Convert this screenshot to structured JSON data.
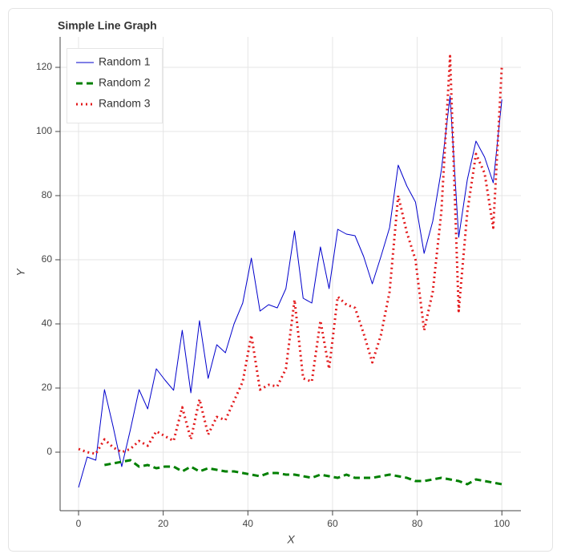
{
  "chart_data": {
    "type": "line",
    "title": "Simple Line Graph",
    "x_label": "X",
    "y_label": "Y",
    "x": [
      0,
      2.04,
      4.08,
      6.12,
      8.16,
      10.2,
      12.24,
      14.29,
      16.33,
      18.37,
      20.41,
      22.45,
      24.49,
      26.53,
      28.57,
      30.61,
      32.65,
      34.69,
      36.73,
      38.78,
      40.82,
      42.86,
      44.9,
      46.94,
      48.98,
      51.02,
      53.06,
      55.1,
      57.14,
      59.18,
      61.22,
      63.27,
      65.31,
      67.35,
      69.39,
      71.43,
      73.47,
      75.51,
      77.55,
      79.59,
      81.63,
      83.67,
      85.71,
      87.76,
      89.8,
      91.84,
      93.88,
      95.92,
      97.96,
      100
    ],
    "series": [
      {
        "name": "Random 1",
        "color": "#0000cc",
        "dash": "solid",
        "values": [
          -11,
          -1.5,
          -2.5,
          19.5,
          8,
          -4.5,
          7,
          19.5,
          13.5,
          26,
          22.5,
          19.3,
          38,
          18.5,
          41,
          23,
          33.5,
          31,
          40,
          46.5,
          60.5,
          44,
          46,
          45,
          51,
          69,
          48,
          46.5,
          64,
          51,
          69.5,
          68,
          67.5,
          61,
          52.5,
          61,
          70,
          89.5,
          83,
          78,
          62,
          72,
          88,
          111,
          67,
          85,
          97,
          92,
          84,
          110
        ]
      },
      {
        "name": "Random 2",
        "color": "#008000",
        "dash": "dashed",
        "values": [
          null,
          null,
          null,
          -4,
          -3.5,
          -3,
          -2.5,
          -4.5,
          -4,
          -5,
          -4.5,
          -4.5,
          -6,
          -4.5,
          -6,
          -5,
          -5.5,
          -6,
          -6,
          -6.5,
          -7,
          -7.5,
          -6.5,
          -6.5,
          -7,
          -7,
          -7.5,
          -8,
          -7,
          -7.5,
          -8,
          -7,
          -8,
          -8,
          -8,
          -7.5,
          -7,
          -7.5,
          -8,
          -9,
          -9,
          -8.5,
          -8,
          -8.5,
          -9,
          -10,
          -8.5,
          -9,
          -9.5,
          -10
        ]
      },
      {
        "name": "Random 3",
        "color": "#e31a1c",
        "dash": "dotted",
        "values": [
          1,
          0,
          -0.5,
          4,
          1.5,
          0,
          1,
          3.5,
          2,
          6.5,
          5,
          3.5,
          14,
          4,
          16.5,
          5.5,
          11,
          10,
          16,
          22,
          36.5,
          19.5,
          21,
          20.5,
          26,
          47.5,
          23,
          22,
          41,
          26,
          48.5,
          46,
          45,
          37,
          28,
          36.5,
          50,
          80,
          68.5,
          60,
          38,
          50,
          75,
          123.5,
          44,
          75,
          93,
          87,
          70,
          120.5
        ]
      }
    ],
    "xlim": [
      -4.36,
      104.5
    ],
    "ylim": [
      -18.25,
      129.5
    ],
    "xticks": [
      0,
      20,
      40,
      60,
      80,
      100
    ],
    "yticks": [
      0,
      20,
      40,
      60,
      80,
      100,
      120
    ],
    "grid": true,
    "legend": "top_left"
  }
}
